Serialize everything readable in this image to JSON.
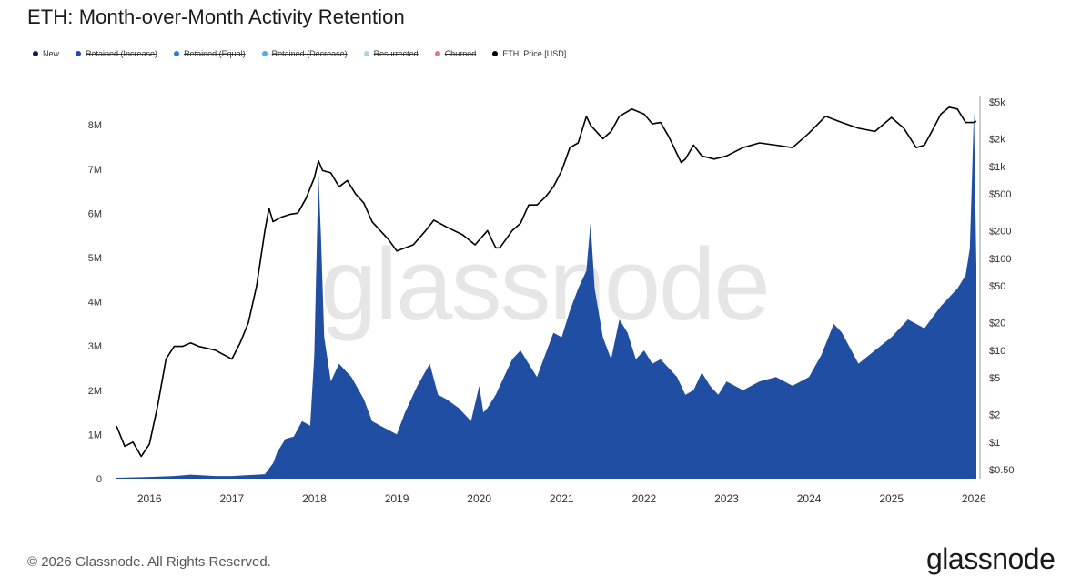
{
  "title": "ETH: Month-over-Month Activity Retention",
  "legend": [
    {
      "label": "New",
      "color": "#0b1f5c",
      "active": true
    },
    {
      "label": "Retained (Increase)",
      "color": "#1d4bb8",
      "active": false
    },
    {
      "label": "Retained (Equal)",
      "color": "#2a7fd4",
      "active": false
    },
    {
      "label": "Retained (Decrease)",
      "color": "#4fb0e8",
      "active": false
    },
    {
      "label": "Resurrected",
      "color": "#a9d2f0",
      "active": false
    },
    {
      "label": "Churned",
      "color": "#e2768c",
      "active": false
    },
    {
      "label": "ETH: Price [USD]",
      "color": "#000000",
      "active": true
    }
  ],
  "watermark": "glassnode",
  "footer": {
    "copyright": "© 2026 Glassnode. All Rights Reserved.",
    "logo": "glassnode"
  },
  "chart_data": {
    "type": "area",
    "x_ticks": [
      "2016",
      "2017",
      "2018",
      "2019",
      "2020",
      "2021",
      "2022",
      "2023",
      "2024",
      "2025",
      "2026"
    ],
    "left_axis": {
      "ticks": [
        "0",
        "1M",
        "2M",
        "3M",
        "4M",
        "5M",
        "6M",
        "7M",
        "8M"
      ],
      "ylim": [
        0,
        8600000
      ]
    },
    "right_axis": {
      "scale": "log",
      "ticks": [
        "$0.50",
        "$1",
        "$2",
        "$5",
        "$10",
        "$20",
        "$50",
        "$100",
        "$200",
        "$500",
        "$1k",
        "$2k",
        "$5k"
      ],
      "ylim": [
        0.4,
        5500
      ]
    },
    "grid": false,
    "series": [
      {
        "name": "New",
        "type": "area",
        "color": "#1f4ea3",
        "x": [
          2015.6,
          2016.0,
          2016.3,
          2016.5,
          2016.8,
          2017.0,
          2017.2,
          2017.4,
          2017.5,
          2017.55,
          2017.65,
          2017.75,
          2017.85,
          2017.95,
          2018.0,
          2018.05,
          2018.08,
          2018.12,
          2018.2,
          2018.3,
          2018.45,
          2018.6,
          2018.7,
          2018.8,
          2018.9,
          2019.0,
          2019.1,
          2019.25,
          2019.4,
          2019.5,
          2019.6,
          2019.75,
          2019.9,
          2020.0,
          2020.05,
          2020.1,
          2020.2,
          2020.3,
          2020.4,
          2020.5,
          2020.6,
          2020.7,
          2020.8,
          2020.9,
          2021.0,
          2021.1,
          2021.2,
          2021.3,
          2021.35,
          2021.4,
          2021.5,
          2021.6,
          2021.7,
          2021.8,
          2021.9,
          2022.0,
          2022.1,
          2022.2,
          2022.3,
          2022.4,
          2022.5,
          2022.6,
          2022.7,
          2022.8,
          2022.9,
          2023.0,
          2023.2,
          2023.4,
          2023.6,
          2023.8,
          2024.0,
          2024.15,
          2024.3,
          2024.4,
          2024.6,
          2024.8,
          2025.0,
          2025.2,
          2025.4,
          2025.6,
          2025.8,
          2025.9,
          2025.95,
          2025.98,
          2026.0,
          2026.03
        ],
        "y": [
          20000,
          40000,
          60000,
          90000,
          60000,
          60000,
          80000,
          100000,
          350000,
          600000,
          900000,
          950000,
          1300000,
          1200000,
          2800000,
          6900000,
          5500000,
          3200000,
          2200000,
          2600000,
          2300000,
          1800000,
          1300000,
          1200000,
          1100000,
          1000000,
          1500000,
          2100000,
          2600000,
          1900000,
          1800000,
          1600000,
          1300000,
          2100000,
          1500000,
          1600000,
          1900000,
          2300000,
          2700000,
          2900000,
          2600000,
          2300000,
          2800000,
          3300000,
          3200000,
          3800000,
          4300000,
          4700000,
          5800000,
          4300000,
          3200000,
          2700000,
          3600000,
          3300000,
          2700000,
          2900000,
          2600000,
          2700000,
          2500000,
          2300000,
          1900000,
          2000000,
          2400000,
          2100000,
          1900000,
          2200000,
          2000000,
          2200000,
          2300000,
          2100000,
          2300000,
          2800000,
          3500000,
          3300000,
          2600000,
          2900000,
          3200000,
          3600000,
          3400000,
          3900000,
          4300000,
          4600000,
          5200000,
          7000000,
          8300000,
          4800000
        ]
      },
      {
        "name": "ETH: Price [USD]",
        "type": "line",
        "axis": "right",
        "color": "#000000",
        "x": [
          2015.6,
          2015.7,
          2015.8,
          2015.9,
          2016.0,
          2016.1,
          2016.2,
          2016.3,
          2016.4,
          2016.5,
          2016.6,
          2016.8,
          2017.0,
          2017.1,
          2017.2,
          2017.3,
          2017.4,
          2017.45,
          2017.5,
          2017.6,
          2017.7,
          2017.8,
          2017.9,
          2018.0,
          2018.05,
          2018.1,
          2018.2,
          2018.3,
          2018.4,
          2018.5,
          2018.6,
          2018.7,
          2018.8,
          2018.9,
          2019.0,
          2019.2,
          2019.35,
          2019.45,
          2019.6,
          2019.8,
          2019.95,
          2020.1,
          2020.2,
          2020.25,
          2020.4,
          2020.5,
          2020.6,
          2020.7,
          2020.8,
          2020.9,
          2021.0,
          2021.1,
          2021.2,
          2021.3,
          2021.35,
          2021.5,
          2021.6,
          2021.7,
          2021.85,
          2022.0,
          2022.1,
          2022.2,
          2022.3,
          2022.45,
          2022.5,
          2022.6,
          2022.7,
          2022.85,
          2023.0,
          2023.2,
          2023.4,
          2023.6,
          2023.8,
          2024.0,
          2024.2,
          2024.4,
          2024.6,
          2024.8,
          2025.0,
          2025.15,
          2025.3,
          2025.4,
          2025.5,
          2025.6,
          2025.7,
          2025.8,
          2025.9,
          2026.0,
          2026.03
        ],
        "y": [
          1.5,
          0.9,
          1.0,
          0.7,
          0.95,
          2.5,
          8,
          11,
          11,
          12,
          11,
          10,
          8,
          12,
          20,
          50,
          200,
          350,
          250,
          280,
          300,
          310,
          450,
          750,
          1150,
          900,
          850,
          600,
          700,
          500,
          400,
          250,
          200,
          160,
          120,
          140,
          200,
          260,
          220,
          180,
          140,
          200,
          130,
          130,
          200,
          240,
          380,
          380,
          460,
          600,
          900,
          1600,
          1800,
          3500,
          2800,
          2000,
          2400,
          3500,
          4200,
          3700,
          2900,
          3000,
          2100,
          1100,
          1200,
          1700,
          1300,
          1200,
          1300,
          1600,
          1800,
          1700,
          1600,
          2300,
          3500,
          3000,
          2600,
          2400,
          3400,
          2600,
          1600,
          1700,
          2500,
          3700,
          4400,
          4200,
          3000,
          3000,
          3100
        ]
      }
    ]
  }
}
